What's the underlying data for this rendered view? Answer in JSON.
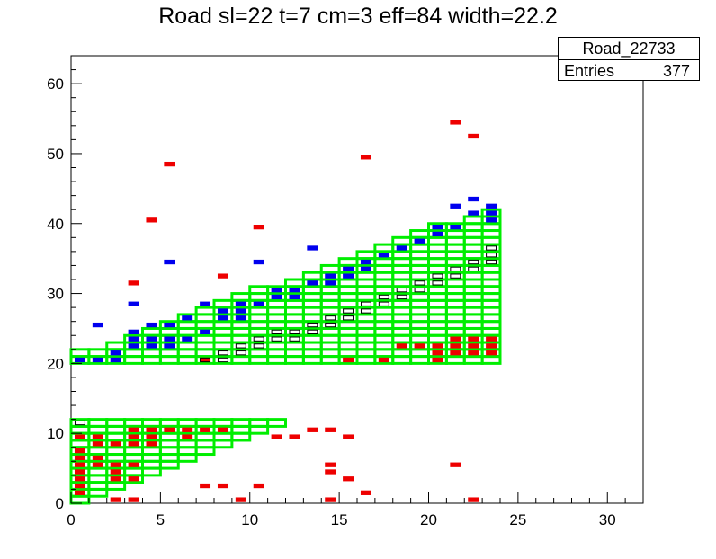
{
  "chart_data": {
    "type": "heatmap",
    "title": "Road sl=22 t=7 cm=3 eff=84 width=22.2",
    "xlabel": "",
    "ylabel": "",
    "xlim": [
      0,
      32
    ],
    "ylim": [
      0,
      64
    ],
    "x_ticks": [
      "0",
      "5",
      "10",
      "15",
      "20",
      "25",
      "30"
    ],
    "y_ticks": [
      "0",
      "10",
      "20",
      "30",
      "40",
      "50",
      "60"
    ],
    "grid": false,
    "legend_position": "top-right",
    "colors": {
      "road": "#00ee00",
      "hits_a": "#ee0000",
      "hits_b": "#0000ee",
      "overlap": "#000000"
    },
    "stats_box": {
      "name": "Road_22733",
      "entries_label": "Entries",
      "entries_value": "377"
    },
    "road_bands": [
      {
        "x_start": 0,
        "x_end": [
          1,
          2,
          3,
          4,
          5,
          6,
          7,
          8,
          9,
          10,
          11,
          12,
          13,
          14
        ],
        "y_bottom": 0,
        "y_top": 12
      },
      {
        "x_start": 0,
        "x_end": 24,
        "y_bottom": 20,
        "y_top": 43
      }
    ],
    "red_hits": [
      [
        0,
        1
      ],
      [
        0,
        2
      ],
      [
        0,
        3
      ],
      [
        0,
        4
      ],
      [
        0,
        5
      ],
      [
        0,
        6
      ],
      [
        0,
        7
      ],
      [
        0,
        9
      ],
      [
        1,
        5
      ],
      [
        1,
        6
      ],
      [
        1,
        8
      ],
      [
        1,
        9
      ],
      [
        2,
        0
      ],
      [
        2,
        3
      ],
      [
        2,
        4
      ],
      [
        2,
        5
      ],
      [
        2,
        8
      ],
      [
        3,
        0
      ],
      [
        3,
        3
      ],
      [
        3,
        5
      ],
      [
        3,
        8
      ],
      [
        3,
        9
      ],
      [
        3,
        10
      ],
      [
        3,
        31
      ],
      [
        4,
        8
      ],
      [
        4,
        9
      ],
      [
        4,
        10
      ],
      [
        4,
        40
      ],
      [
        5,
        10
      ],
      [
        5,
        48
      ],
      [
        6,
        9
      ],
      [
        6,
        10
      ],
      [
        7,
        2
      ],
      [
        7,
        10
      ],
      [
        7,
        20
      ],
      [
        8,
        2
      ],
      [
        8,
        10
      ],
      [
        8,
        32
      ],
      [
        9,
        0
      ],
      [
        10,
        2
      ],
      [
        10,
        39
      ],
      [
        11,
        9
      ],
      [
        12,
        9
      ],
      [
        13,
        10
      ],
      [
        14,
        0
      ],
      [
        14,
        4
      ],
      [
        14,
        5
      ],
      [
        14,
        10
      ],
      [
        15,
        3
      ],
      [
        15,
        9
      ],
      [
        15,
        20
      ],
      [
        16,
        1
      ],
      [
        16,
        49
      ],
      [
        17,
        20
      ],
      [
        18,
        22
      ],
      [
        19,
        22
      ],
      [
        20,
        20
      ],
      [
        20,
        21
      ],
      [
        20,
        22
      ],
      [
        21,
        5
      ],
      [
        21,
        21
      ],
      [
        21,
        22
      ],
      [
        21,
        23
      ],
      [
        21,
        54
      ],
      [
        22,
        0
      ],
      [
        22,
        21
      ],
      [
        22,
        22
      ],
      [
        22,
        23
      ],
      [
        22,
        52
      ],
      [
        23,
        21
      ],
      [
        23,
        22
      ],
      [
        23,
        23
      ]
    ],
    "blue_hits": [
      [
        0,
        20
      ],
      [
        1,
        25
      ],
      [
        1,
        20
      ],
      [
        2,
        20
      ],
      [
        2,
        21
      ],
      [
        3,
        22
      ],
      [
        3,
        23
      ],
      [
        3,
        24
      ],
      [
        3,
        28
      ],
      [
        4,
        22
      ],
      [
        4,
        23
      ],
      [
        4,
        25
      ],
      [
        5,
        22
      ],
      [
        5,
        23
      ],
      [
        5,
        25
      ],
      [
        5,
        34
      ],
      [
        6,
        23
      ],
      [
        6,
        26
      ],
      [
        7,
        24
      ],
      [
        7,
        28
      ],
      [
        8,
        26
      ],
      [
        8,
        27
      ],
      [
        9,
        26
      ],
      [
        9,
        27
      ],
      [
        9,
        28
      ],
      [
        10,
        28
      ],
      [
        10,
        34
      ],
      [
        11,
        29
      ],
      [
        11,
        30
      ],
      [
        12,
        29
      ],
      [
        12,
        30
      ],
      [
        13,
        31
      ],
      [
        13,
        36
      ],
      [
        14,
        31
      ],
      [
        14,
        32
      ],
      [
        15,
        32
      ],
      [
        15,
        33
      ],
      [
        16,
        33
      ],
      [
        16,
        34
      ],
      [
        17,
        35
      ],
      [
        18,
        36
      ],
      [
        19,
        37
      ],
      [
        20,
        38
      ],
      [
        20,
        39
      ],
      [
        21,
        39
      ],
      [
        21,
        42
      ],
      [
        22,
        41
      ],
      [
        22,
        43
      ],
      [
        23,
        40
      ],
      [
        23,
        41
      ],
      [
        23,
        42
      ]
    ],
    "black_boxes": [
      [
        0,
        11
      ],
      [
        7,
        20
      ],
      [
        8,
        20
      ],
      [
        8,
        21
      ],
      [
        9,
        21
      ],
      [
        9,
        22
      ],
      [
        10,
        22
      ],
      [
        10,
        23
      ],
      [
        11,
        23
      ],
      [
        11,
        24
      ],
      [
        12,
        23
      ],
      [
        12,
        24
      ],
      [
        13,
        24
      ],
      [
        13,
        25
      ],
      [
        14,
        25
      ],
      [
        14,
        26
      ],
      [
        15,
        26
      ],
      [
        15,
        27
      ],
      [
        16,
        27
      ],
      [
        16,
        28
      ],
      [
        17,
        28
      ],
      [
        17,
        29
      ],
      [
        18,
        29
      ],
      [
        18,
        30
      ],
      [
        19,
        30
      ],
      [
        19,
        31
      ],
      [
        20,
        31
      ],
      [
        20,
        32
      ],
      [
        21,
        32
      ],
      [
        21,
        33
      ],
      [
        22,
        33
      ],
      [
        22,
        34
      ],
      [
        23,
        34
      ],
      [
        23,
        35
      ],
      [
        23,
        36
      ]
    ]
  }
}
